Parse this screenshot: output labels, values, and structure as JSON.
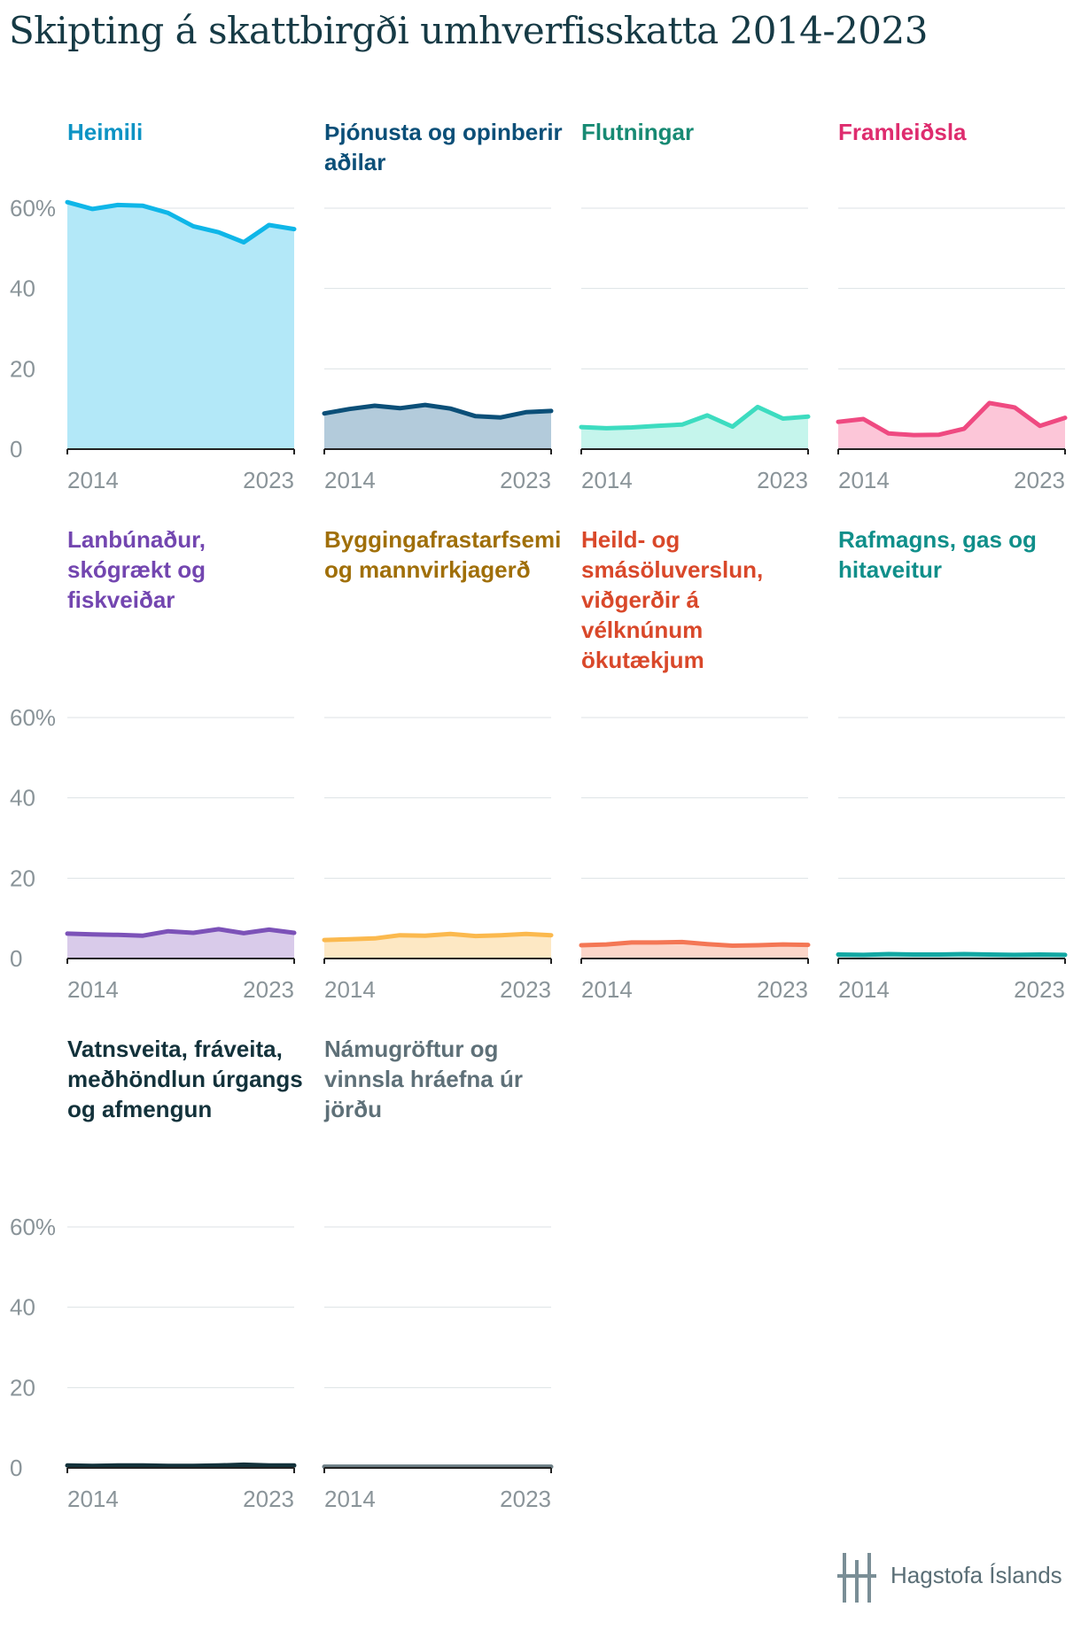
{
  "title": "Skipting á skattbirgði umhverfisskatta 2014-2023",
  "logo": {
    "text": "Hagstofa Íslands"
  },
  "chart_data": {
    "type": "area",
    "layout": "small multiples",
    "x": [
      2014,
      2015,
      2016,
      2017,
      2018,
      2019,
      2020,
      2021,
      2022,
      2023
    ],
    "x_tick_labels": [
      "2014",
      "2023"
    ],
    "y_ticks": [
      0,
      20,
      40,
      60
    ],
    "y_tick_labels": [
      "0",
      "20",
      "40",
      "60%"
    ],
    "ylim": [
      0,
      60
    ],
    "grid": true,
    "panels": [
      {
        "name": "Heimili",
        "color": "#0fb6e8",
        "fill": "#b3e8f8",
        "title_color": "#0c93c4",
        "values": [
          61.5,
          59.8,
          60.8,
          60.6,
          58.8,
          55.5,
          54.0,
          51.5,
          55.8,
          54.8
        ]
      },
      {
        "name": "Þjónusta og opinberir aðilar",
        "color": "#0b4f78",
        "fill": "#b3cbdb",
        "title_color": "#0b4f78",
        "values": [
          8.9,
          10.0,
          10.8,
          10.2,
          11.0,
          10.1,
          8.2,
          7.9,
          9.2,
          9.5
        ]
      },
      {
        "name": "Flutningar",
        "color": "#3ddcc0",
        "fill": "#c5f5ec",
        "title_color": "#178a73",
        "values": [
          5.5,
          5.2,
          5.4,
          5.8,
          6.1,
          8.4,
          5.6,
          10.5,
          7.6,
          8.1
        ]
      },
      {
        "name": "Framleiðsla",
        "color": "#ef4a81",
        "fill": "#fcc6d8",
        "title_color": "#de2c6e",
        "values": [
          6.8,
          7.5,
          3.9,
          3.5,
          3.6,
          5.1,
          11.5,
          10.4,
          5.8,
          7.8
        ]
      },
      {
        "name": "Lanbúnaður, skógrækt og fiskveiðar",
        "color": "#7c52b8",
        "fill": "#d9cbea",
        "title_color": "#7346b0",
        "values": [
          6.2,
          6.0,
          5.9,
          5.7,
          6.8,
          6.4,
          7.3,
          6.3,
          7.2,
          6.4
        ]
      },
      {
        "name": "Byggingafrastarfsemi og mannvirkjagerð",
        "color": "#fbb94e",
        "fill": "#fde8c4",
        "title_color": "#a06f09",
        "values": [
          4.6,
          4.8,
          5.0,
          5.8,
          5.7,
          6.1,
          5.6,
          5.8,
          6.1,
          5.8
        ]
      },
      {
        "name": "Heild- og smásöluverslun, viðgerðir á vélknúnum ökutækjum",
        "color": "#f47755",
        "fill": "#fcd6c9",
        "title_color": "#d9482a",
        "values": [
          3.3,
          3.5,
          4.0,
          4.0,
          4.1,
          3.6,
          3.2,
          3.3,
          3.5,
          3.4
        ]
      },
      {
        "name": "Rafmagns, gas og hitaveitur",
        "color": "#13a8a3",
        "fill": "#bce6e4",
        "title_color": "#108f8a",
        "values": [
          1.0,
          0.9,
          1.1,
          1.0,
          1.0,
          1.1,
          1.0,
          0.9,
          1.0,
          0.9
        ]
      },
      {
        "name": "Vatnsveita, fráveita, meðhöndlun úrgangs og afmengun",
        "color": "#13323b",
        "fill": "#bcc6c9",
        "title_color": "#13323b",
        "values": [
          0.6,
          0.5,
          0.6,
          0.6,
          0.5,
          0.5,
          0.6,
          0.8,
          0.6,
          0.6
        ]
      },
      {
        "name": "Námugröftur og vinnsla hráefna úr jörðu",
        "color": "#6c7e85",
        "fill": "#dfe5e7",
        "title_color": "#5e7078",
        "values": [
          0.3,
          0.3,
          0.3,
          0.3,
          0.3,
          0.3,
          0.3,
          0.3,
          0.3,
          0.3
        ]
      }
    ]
  }
}
